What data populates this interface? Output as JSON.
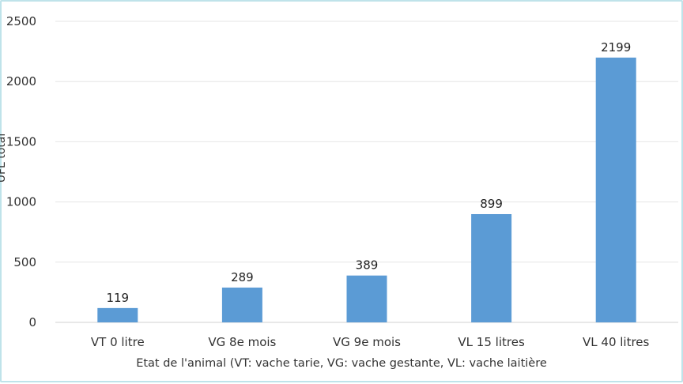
{
  "chart_data": {
    "type": "bar",
    "categories": [
      "VT 0 litre",
      "VG 8e mois",
      "VG 9e mois",
      "VL 15 litres",
      "VL 40 litres"
    ],
    "values": [
      119,
      289,
      389,
      899,
      2199
    ],
    "data_labels": [
      "119",
      "289",
      "389",
      "899",
      "2199"
    ],
    "xlabel": "Etat de l'animal (VT: vache tarie, VG: vache gestante, VL: vache laitière",
    "ylabel": "UFL total",
    "ylim": [
      0,
      2500
    ],
    "yticks": [
      "0",
      "500",
      "1000",
      "1500",
      "2000",
      "2500"
    ],
    "grid": true,
    "bar_color": "#5b9bd5",
    "grid_color": "#e6e6e6"
  }
}
